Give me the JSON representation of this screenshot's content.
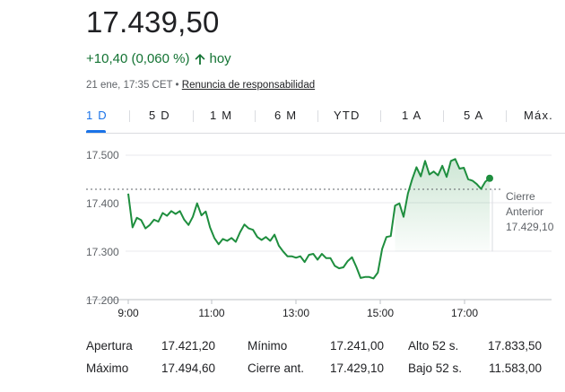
{
  "quote": {
    "price": "17.439,50",
    "change": "+10,40 (0,060 %)",
    "period": "hoy",
    "timestamp": "21 ene, 17:35 CET",
    "bullet": "•",
    "disclaimer": "Renuncia de responsabilidad",
    "up_color": "#137333"
  },
  "tabs": [
    "1 D",
    "5 D",
    "1 M",
    "6 M",
    "YTD",
    "1 A",
    "5 A",
    "Máx."
  ],
  "active_tab": "1 D",
  "chart_data": {
    "type": "line",
    "x_ticks": [
      "9:00",
      "11:00",
      "13:00",
      "15:00",
      "17:00"
    ],
    "y_ticks": [
      "17.200",
      "17.300",
      "17.400",
      "17.500"
    ],
    "ylim": [
      17200,
      17500
    ],
    "line_color": "#1e8e3e",
    "previous_close_label": [
      "Cierre",
      "Anterior",
      "17.429,10"
    ],
    "previous_close": 17429.1,
    "series": [
      {
        "values": [
          17420,
          17350,
          17370,
          17365,
          17348,
          17355,
          17366,
          17362,
          17380,
          17374,
          17384,
          17378,
          17384,
          17366,
          17355,
          17372,
          17400,
          17375,
          17383,
          17350,
          17328,
          17315,
          17326,
          17322,
          17328,
          17320,
          17340,
          17356,
          17348,
          17345,
          17330,
          17324,
          17330,
          17322,
          17335,
          17312,
          17300,
          17290,
          17290,
          17287,
          17290,
          17278,
          17293,
          17295,
          17283,
          17295,
          17286,
          17286,
          17270,
          17265,
          17267,
          17280,
          17288,
          17268,
          17245,
          17247,
          17247,
          17244,
          17256,
          17305,
          17330,
          17332,
          17395,
          17400,
          17372,
          17420,
          17450,
          17475,
          17456,
          17488,
          17460,
          17466,
          17458,
          17478,
          17455,
          17488,
          17492,
          17472,
          17474,
          17450,
          17447,
          17440,
          17430,
          17445,
          17452
        ]
      }
    ]
  },
  "stats": [
    [
      {
        "label": "Apertura",
        "value": "17.421,20"
      },
      {
        "label": "Mínimo",
        "value": "17.241,00"
      },
      {
        "label": "Alto 52 s.",
        "value": "17.833,50"
      }
    ],
    [
      {
        "label": "Máximo",
        "value": "17.494,60"
      },
      {
        "label": "Cierre ant.",
        "value": "17.429,10"
      },
      {
        "label": "Bajo 52 s.",
        "value": "11.583,00"
      }
    ]
  ]
}
